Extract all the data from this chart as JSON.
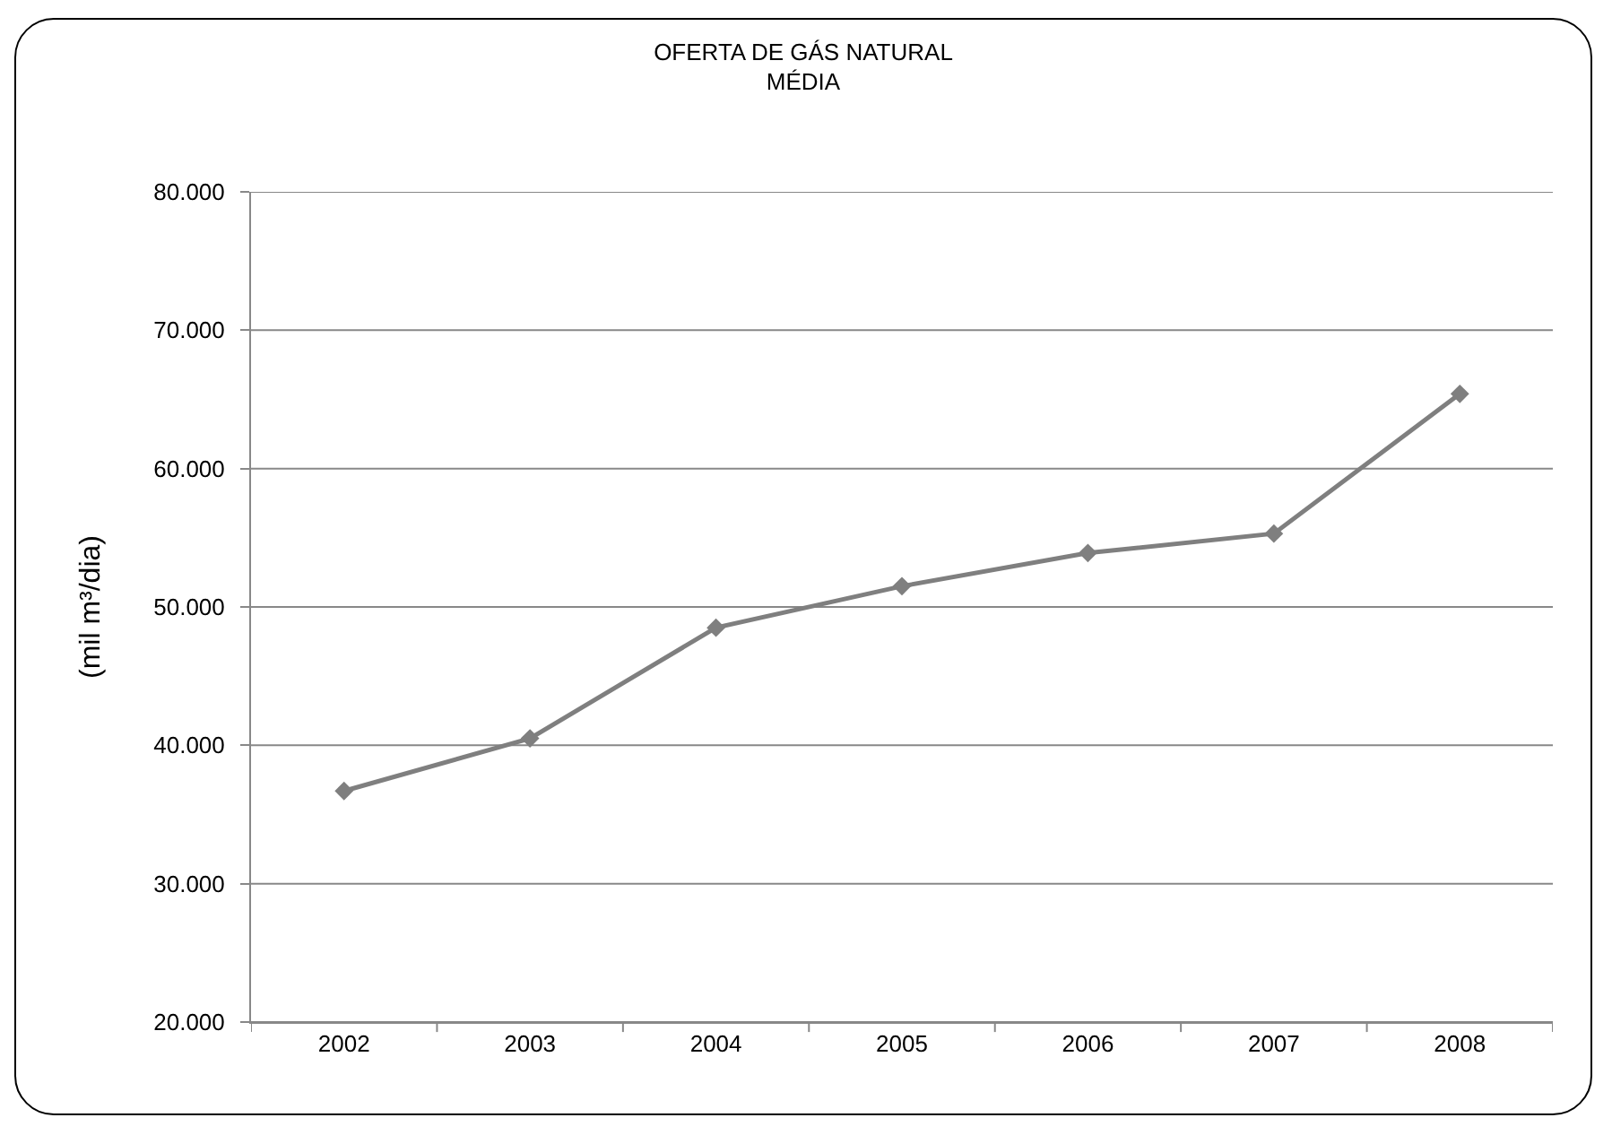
{
  "chart_data": {
    "type": "line",
    "title": "OFERTA DE GÁS NATURAL\nMÉDIA",
    "ylabel": "(mil m³/dia)",
    "categories": [
      "2002",
      "2003",
      "2004",
      "2005",
      "2006",
      "2007",
      "2008"
    ],
    "series": [
      {
        "color": "#7f7f7f",
        "values": [
          36700,
          40500,
          48500,
          51500,
          53900,
          55300,
          65400
        ]
      }
    ],
    "ylim": [
      20000,
      80000
    ],
    "yticks": [
      {
        "value": 20000,
        "label": "20.000"
      },
      {
        "value": 30000,
        "label": "30.000"
      },
      {
        "value": 40000,
        "label": "40.000"
      },
      {
        "value": 50000,
        "label": "50.000"
      },
      {
        "value": 60000,
        "label": "60.000"
      },
      {
        "value": 70000,
        "label": "70.000"
      },
      {
        "value": 80000,
        "label": "80.000"
      }
    ],
    "grid": "y",
    "marker": "diamond",
    "line_style": "solid"
  }
}
